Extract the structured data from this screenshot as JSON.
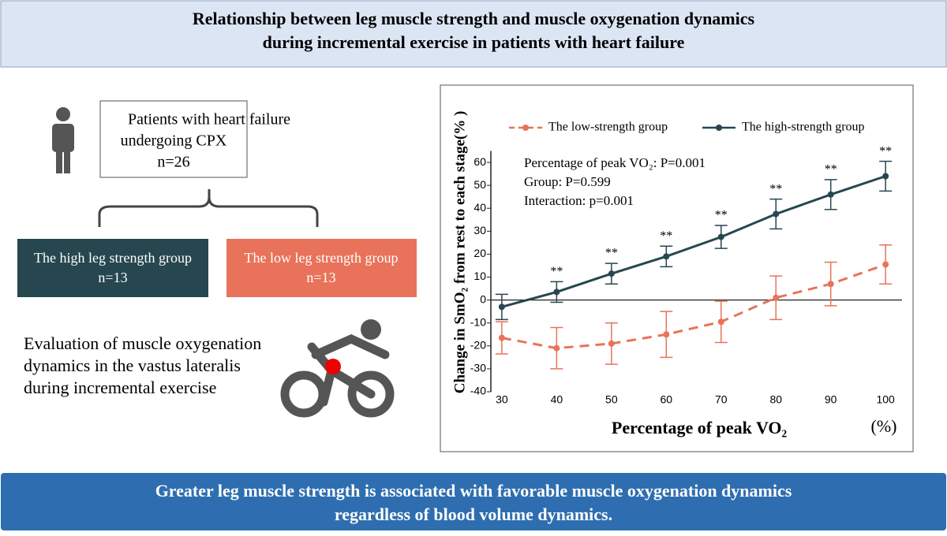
{
  "header": {
    "title": [
      "Relationship between leg muscle strength and muscle oxygenation dynamics",
      "during incremental exercise in patients with heart failure"
    ]
  },
  "flow": {
    "patients": [
      "Patients with heart failure",
      "undergoing CPX",
      "n=26"
    ],
    "high_group": [
      "The high leg strength group",
      "n=13"
    ],
    "low_group": [
      "The low leg strength group",
      "n=13"
    ],
    "evaluation": [
      "Evaluation of muscle oxygenation",
      "dynamics in the vastus lateralis",
      "during incremental exercise"
    ]
  },
  "chart_data": {
    "type": "line",
    "y_label": "Change in SmO₂ from rest to each stage(% )",
    "x_label": "Percentage of peak VO₂",
    "x_unit": "(%)",
    "stats": [
      "Percentage of peak VO₂: P=0.001",
      "Group: P=0.599",
      "Interaction: p=0.001"
    ],
    "x": [
      30,
      40,
      50,
      60,
      70,
      80,
      90,
      100
    ],
    "significance_labels": [
      null,
      "**",
      "**",
      "**",
      "**",
      "**",
      "**",
      "**"
    ],
    "series": [
      {
        "name": "The low-strength group",
        "color": "#e8735a",
        "line_style": "dashed",
        "values": [
          -16.5,
          -21,
          -19,
          -15,
          -9.5,
          1,
          7,
          15.5
        ],
        "errors": [
          7,
          9,
          9,
          10,
          9,
          9.5,
          9.5,
          8.5
        ]
      },
      {
        "name": "The high-strength group",
        "color": "#26474f",
        "line_style": "solid",
        "values": [
          -3,
          3.5,
          11.5,
          19,
          27.5,
          37.5,
          46,
          54
        ],
        "errors": [
          5.5,
          4.5,
          4.5,
          4.5,
          5,
          6.5,
          6.5,
          6.5
        ]
      }
    ],
    "xlim": [
      28,
      103
    ],
    "ylim": [
      -40,
      65
    ],
    "xticks": [
      30,
      40,
      50,
      60,
      70,
      80,
      90,
      100
    ],
    "yticks": [
      -40,
      -30,
      -20,
      -10,
      0,
      10,
      20,
      30,
      40,
      50,
      60
    ],
    "reference_line": 0,
    "legend": "top"
  },
  "footer": {
    "text": [
      "Greater leg muscle strength is associated with favorable muscle oxygenation dynamics",
      "regardless of blood volume dynamics."
    ]
  }
}
